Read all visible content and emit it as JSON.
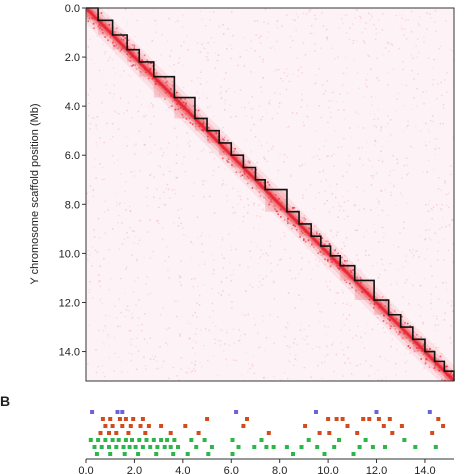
{
  "figure": {
    "panel_b_label": "B"
  },
  "colors": {
    "map_background": "#fdf3f6",
    "map_signal": "#e8232f",
    "map_speckle": "#f2a4b8",
    "domain_line": "#111111",
    "track_red": "#d24a1e",
    "track_green": "#2cb54a",
    "track_blue": "#6a62d8"
  },
  "chart_data": [
    {
      "type": "heatmap",
      "title": "",
      "xlabel": "",
      "ylabel": "Y chromosome scaffold position (Mb)",
      "xlim": [
        0.0,
        15.2
      ],
      "ylim": [
        0.0,
        15.2
      ],
      "y_inverted": true,
      "yticks": [
        0.0,
        2.0,
        4.0,
        6.0,
        8.0,
        10.0,
        12.0,
        14.0
      ],
      "ytick_labels": [
        "0.0",
        "2.0",
        "4.0",
        "6.0",
        "8.0",
        "10.0",
        "12.0",
        "14.0"
      ],
      "diagonal_signal": true,
      "domain_boundaries_mb": [
        0.0,
        0.5,
        1.1,
        1.7,
        2.2,
        2.8,
        3.65,
        4.5,
        5.0,
        5.5,
        6.0,
        6.5,
        7.0,
        7.4,
        8.3,
        8.8,
        9.3,
        9.7,
        10.1,
        10.5,
        11.1,
        11.9,
        12.5,
        13.0,
        13.5,
        14.0,
        14.4,
        14.8,
        15.2
      ]
    },
    {
      "type": "scatter",
      "title": "",
      "xlabel": "",
      "xlim": [
        0.0,
        15.2
      ],
      "xticks": [
        0.0,
        2.0,
        4.0,
        6.0,
        8.0,
        10.0,
        12.0,
        14.0
      ],
      "xtick_labels": [
        "0.0",
        "2.0",
        "4.0",
        "6.0",
        "8.0",
        "10.0",
        "12.0",
        "14.0"
      ],
      "series": [
        {
          "color": "#6a62d8",
          "row": 0,
          "x": [
            0.25,
            1.3,
            1.5,
            6.2,
            9.5,
            12.0,
            14.2
          ]
        },
        {
          "color": "#d24a1e",
          "row": 1,
          "x": [
            0.7,
            1.0,
            1.4,
            1.65,
            1.95,
            2.35,
            5.0,
            6.65,
            10.0,
            10.35,
            10.6,
            11.45,
            11.7,
            12.1,
            12.55,
            14.55
          ]
        },
        {
          "color": "#d24a1e",
          "row": 2,
          "x": [
            0.8,
            1.1,
            1.5,
            1.85,
            2.25,
            2.6,
            3.1,
            4.1,
            6.5,
            9.05,
            10.8,
            12.3,
            13.05,
            14.75
          ]
        },
        {
          "color": "#d24a1e",
          "row": 3,
          "x": [
            0.6,
            0.95,
            1.25,
            1.75,
            2.45,
            3.5,
            4.65,
            7.55,
            9.65,
            10.05,
            11.2,
            12.65,
            14.3
          ]
        },
        {
          "color": "#2cb54a",
          "row": 4,
          "x": [
            0.2,
            0.5,
            0.8,
            1.1,
            1.35,
            1.65,
            1.9,
            2.2,
            2.5,
            2.8,
            3.1,
            3.35,
            3.65,
            4.35,
            4.9,
            6.05,
            7.25,
            9.2,
            10.45,
            11.55,
            13.15
          ]
        },
        {
          "color": "#2cb54a",
          "row": 5,
          "x": [
            0.35,
            0.65,
            0.95,
            1.25,
            1.55,
            1.8,
            2.05,
            2.35,
            2.65,
            2.95,
            3.25,
            3.5,
            3.8,
            4.55,
            5.2,
            6.3,
            6.95,
            7.45,
            7.75,
            8.3,
            8.9,
            9.55,
            10.25,
            11.3,
            11.85,
            12.35,
            13.6,
            14.45
          ]
        },
        {
          "color": "#2cb54a",
          "row": 6,
          "x": [
            0.45,
            1.0,
            1.6,
            2.15,
            2.9,
            3.6,
            4.2,
            5.05,
            6.05,
            8.55,
            9.85,
            11.05
          ]
        }
      ]
    }
  ]
}
